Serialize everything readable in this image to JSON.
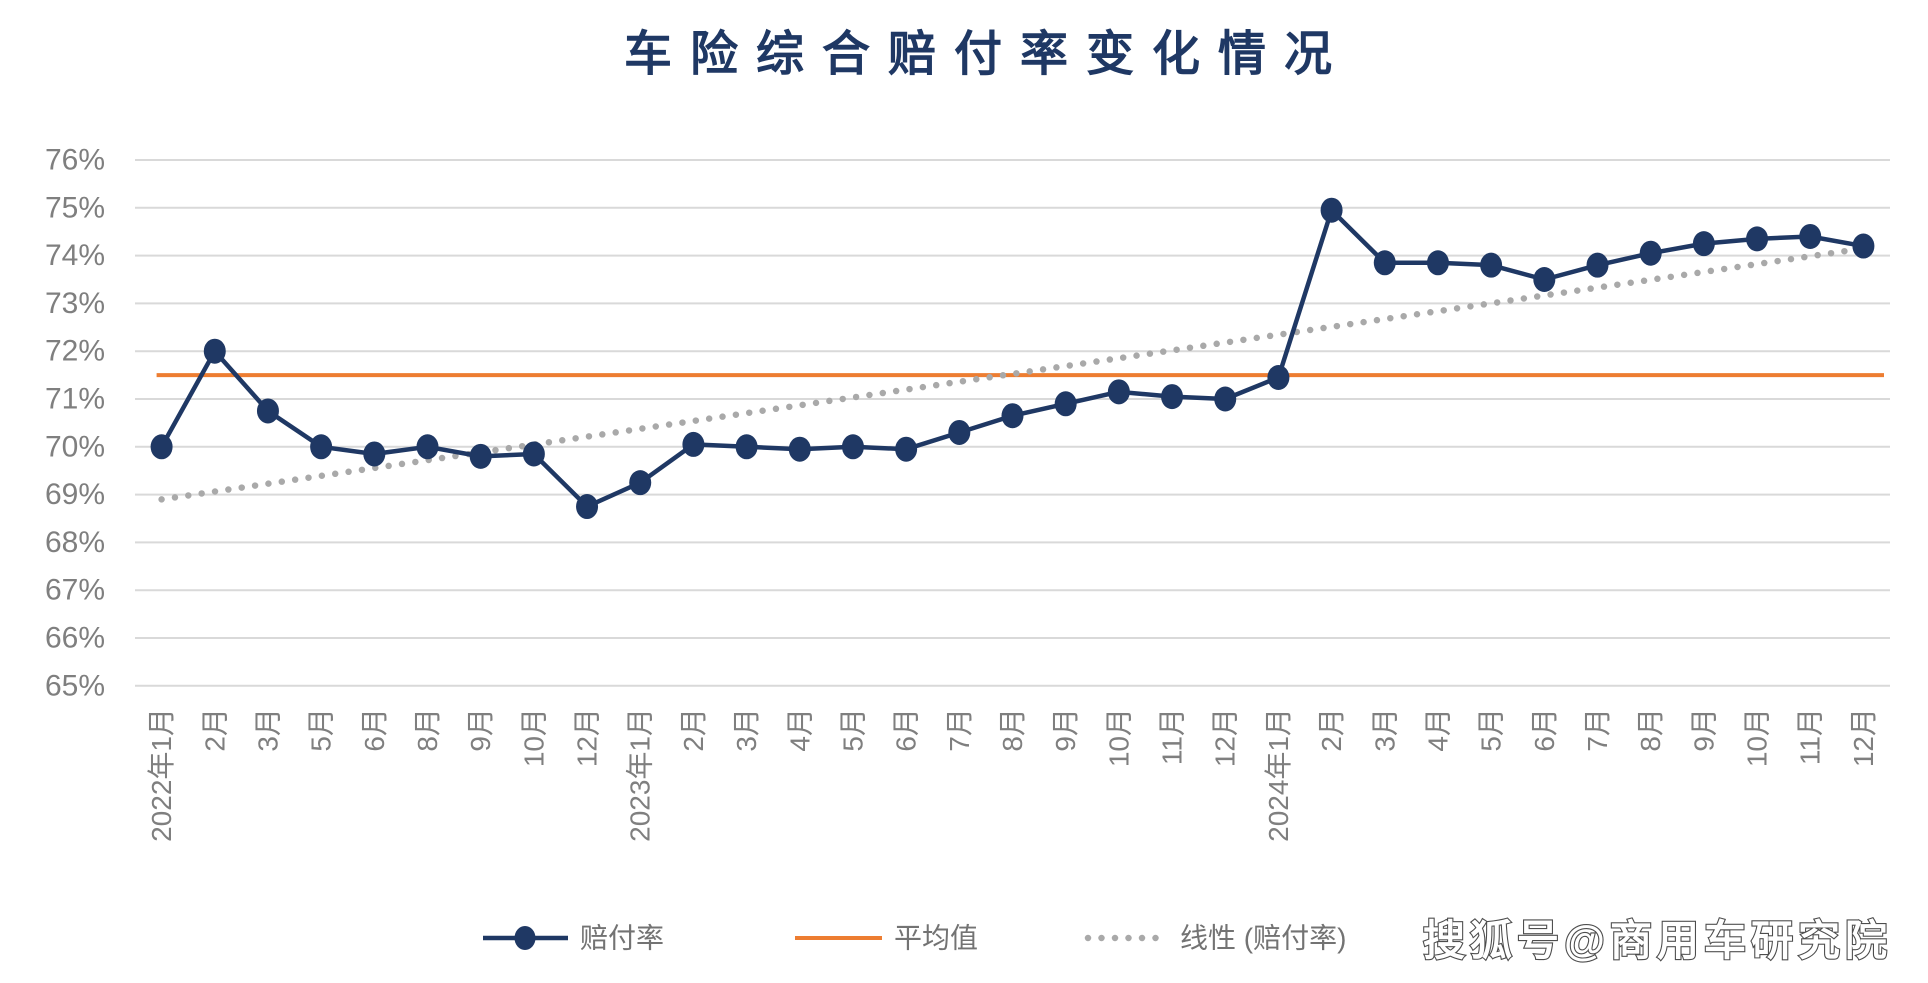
{
  "title": "车险综合赔付率变化情况",
  "watermark": "搜狐号@商用车研究院",
  "colors": {
    "series_line": "#1f3864",
    "average_line": "#ed7d31",
    "trend_dots": "#a9a9a9",
    "gridline": "#d9d9d9",
    "tick_label": "#7f7f7f",
    "legend_label": "#737373",
    "title_color": "#1f3864",
    "background": "#ffffff"
  },
  "chart_data": {
    "type": "line",
    "title": "车险综合赔付率变化情况",
    "grid": "horizontal",
    "legend_position": "bottom",
    "ylim": [
      65,
      76
    ],
    "ytick_labels": [
      "76%",
      "75%",
      "74%",
      "73%",
      "72%",
      "71%",
      "70%",
      "69%",
      "68%",
      "67%",
      "66%",
      "65%"
    ],
    "ytick_values": [
      76,
      75,
      74,
      73,
      72,
      71,
      70,
      69,
      68,
      67,
      66,
      65
    ],
    "categories": [
      "2022年1月",
      "2月",
      "3月",
      "5月",
      "6月",
      "8月",
      "9月",
      "10月",
      "12月",
      "2023年1月",
      "2月",
      "3月",
      "4月",
      "5月",
      "6月",
      "7月",
      "8月",
      "9月",
      "10月",
      "11月",
      "12月",
      "2024年1月",
      "2月",
      "3月",
      "4月",
      "5月",
      "6月",
      "7月",
      "8月",
      "9月",
      "10月",
      "11月",
      "12月"
    ],
    "series": [
      {
        "name": "赔付率",
        "kind": "line-with-markers",
        "values": [
          70.0,
          72.0,
          70.75,
          70.0,
          69.85,
          70.0,
          69.8,
          69.85,
          68.75,
          69.25,
          70.05,
          70.0,
          69.95,
          70.0,
          69.95,
          70.3,
          70.65,
          70.9,
          71.15,
          71.05,
          71.0,
          71.45,
          74.95,
          73.85,
          73.85,
          73.8,
          73.5,
          73.8,
          74.05,
          74.25,
          74.35,
          74.4,
          74.2
        ]
      },
      {
        "name": "平均值",
        "kind": "horizontal-average-line",
        "value": 71.5
      },
      {
        "name": "线性 (赔付率)",
        "kind": "linear-trend",
        "start": 68.9,
        "end": 74.15
      }
    ]
  }
}
